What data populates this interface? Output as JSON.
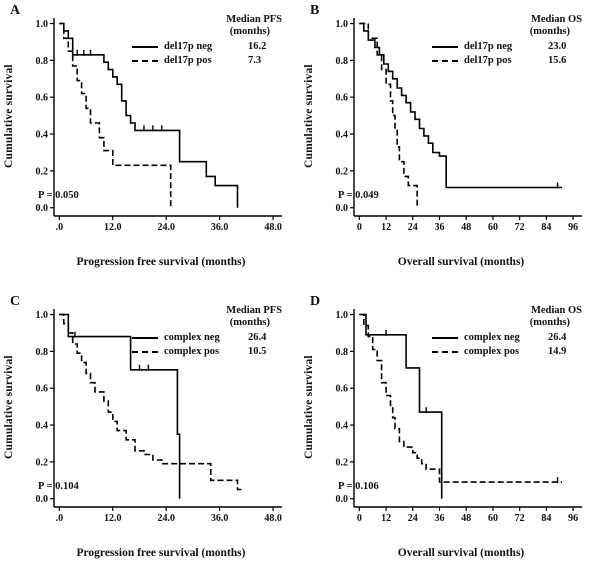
{
  "figure": {
    "background": "#ffffff",
    "line_color": "#000000"
  },
  "chart_data": [
    {
      "type": "line",
      "step": true,
      "panel_label": "A",
      "xlabel": "Progression free survival (months)",
      "ylabel": "Cumulative survival",
      "annotation": "P = 0.050",
      "xlim": [
        -1.2,
        50
      ],
      "ylim": [
        -0.045,
        1.03
      ],
      "x_ticks": {
        "values": [
          0,
          12,
          24,
          36,
          48
        ],
        "labels": [
          ".0",
          "12.0",
          "24.0",
          "36.0",
          "48.0"
        ]
      },
      "y_ticks": {
        "values": [
          0,
          0.2,
          0.4,
          0.6,
          0.8,
          1.0
        ],
        "labels": [
          "0.0",
          "0.2",
          "0.4",
          "0.6",
          "0.8",
          "1.0"
        ]
      },
      "legend": {
        "title": "Median PFS",
        "subtitle": "(months)",
        "position": "top-right"
      },
      "series": [
        {
          "name": "del17p neg",
          "median": "16.2",
          "line": "solid",
          "step_points": [
            [
              0,
              1.0
            ],
            [
              1,
              0.96
            ],
            [
              2,
              0.92
            ],
            [
              3,
              0.83
            ],
            [
              9,
              0.83
            ],
            [
              10,
              0.79
            ],
            [
              11,
              0.75
            ],
            [
              12,
              0.71
            ],
            [
              13,
              0.67
            ],
            [
              14,
              0.58
            ],
            [
              15,
              0.5
            ],
            [
              16,
              0.46
            ],
            [
              17,
              0.42
            ],
            [
              26,
              0.42
            ],
            [
              27,
              0.25
            ],
            [
              32,
              0.25
            ],
            [
              33,
              0.17
            ],
            [
              35,
              0.12
            ],
            [
              40,
              0.12
            ],
            [
              40,
              0
            ]
          ],
          "censors": [
            [
              4,
              0.83
            ],
            [
              5.5,
              0.83
            ],
            [
              7,
              0.83
            ],
            [
              19,
              0.42
            ],
            [
              21,
              0.42
            ],
            [
              23,
              0.42
            ]
          ]
        },
        {
          "name": "del17p pos",
          "median": "7.3",
          "line": "dashed",
          "step_points": [
            [
              0,
              1.0
            ],
            [
              1,
              0.92
            ],
            [
              2,
              0.85
            ],
            [
              3,
              0.77
            ],
            [
              4,
              0.69
            ],
            [
              5,
              0.62
            ],
            [
              6,
              0.54
            ],
            [
              7,
              0.46
            ],
            [
              9,
              0.38
            ],
            [
              10,
              0.31
            ],
            [
              12,
              0.23
            ],
            [
              25,
              0.23
            ],
            [
              25,
              0
            ]
          ],
          "censors": []
        }
      ]
    },
    {
      "type": "line",
      "step": true,
      "panel_label": "B",
      "xlabel": "Overall survival (months)",
      "ylabel": "Cumulative survival",
      "annotation": "P = 0.049",
      "xlim": [
        -2.4,
        100
      ],
      "ylim": [
        -0.045,
        1.03
      ],
      "x_ticks": {
        "values": [
          0,
          12,
          24,
          36,
          48,
          60,
          72,
          84,
          96
        ],
        "labels": [
          "0",
          "12",
          "24",
          "36",
          "48",
          "60",
          "72",
          "84",
          "96"
        ]
      },
      "y_ticks": {
        "values": [
          0,
          0.2,
          0.4,
          0.6,
          0.8,
          1.0
        ],
        "labels": [
          "0.0",
          "0.2",
          "0.4",
          "0.6",
          "0.8",
          "1.0"
        ]
      },
      "legend": {
        "title": "Median OS",
        "subtitle": "(months)",
        "position": "top-right"
      },
      "series": [
        {
          "name": "del17p neg",
          "median": "23.0",
          "line": "solid",
          "step_points": [
            [
              0,
              1.0
            ],
            [
              2,
              0.96
            ],
            [
              4,
              0.91
            ],
            [
              7,
              0.87
            ],
            [
              9,
              0.83
            ],
            [
              11,
              0.78
            ],
            [
              13,
              0.74
            ],
            [
              15,
              0.7
            ],
            [
              17,
              0.65
            ],
            [
              19,
              0.61
            ],
            [
              21,
              0.57
            ],
            [
              23,
              0.52
            ],
            [
              25,
              0.48
            ],
            [
              27,
              0.43
            ],
            [
              29,
              0.39
            ],
            [
              31,
              0.35
            ],
            [
              33,
              0.3
            ],
            [
              36,
              0.28
            ],
            [
              39,
              0.11
            ],
            [
              91,
              0.11
            ]
          ],
          "censors": [
            [
              89,
              0.11
            ]
          ]
        },
        {
          "name": "del17p pos",
          "median": "15.6",
          "line": "dashed",
          "step_points": [
            [
              0,
              1.0
            ],
            [
              4,
              0.92
            ],
            [
              8,
              0.83
            ],
            [
              10,
              0.75
            ],
            [
              12,
              0.67
            ],
            [
              14,
              0.58
            ],
            [
              15,
              0.5
            ],
            [
              16,
              0.42
            ],
            [
              17,
              0.33
            ],
            [
              18,
              0.25
            ],
            [
              20,
              0.17
            ],
            [
              22,
              0.12
            ],
            [
              26,
              0.12
            ],
            [
              26,
              0
            ]
          ],
          "censors": []
        }
      ]
    },
    {
      "type": "line",
      "step": true,
      "panel_label": "C",
      "xlabel": "Progression free survival (months)",
      "ylabel": "Cumulative survival",
      "annotation": "P = 0.104",
      "xlim": [
        -1.2,
        50
      ],
      "ylim": [
        -0.045,
        1.03
      ],
      "x_ticks": {
        "values": [
          0,
          12,
          24,
          36,
          48
        ],
        "labels": [
          ".0",
          "12.0",
          "24.0",
          "36.0",
          "48.0"
        ]
      },
      "y_ticks": {
        "values": [
          0,
          0.2,
          0.4,
          0.6,
          0.8,
          1.0
        ],
        "labels": [
          "0.0",
          "0.2",
          "0.4",
          "0.6",
          "0.8",
          "1.0"
        ]
      },
      "legend": {
        "title": "Median PFS",
        "subtitle": "(months)",
        "position": "top-right"
      },
      "series": [
        {
          "name": "complex neg",
          "median": "26.4",
          "line": "solid",
          "step_points": [
            [
              0,
              1.0
            ],
            [
              2,
              0.88
            ],
            [
              15,
              0.88
            ],
            [
              16,
              0.7
            ],
            [
              26,
              0.7
            ],
            [
              26.5,
              0.35
            ],
            [
              27,
              0.35
            ],
            [
              27,
              0
            ]
          ],
          "censors": [
            [
              3.5,
              0.88
            ],
            [
              18,
              0.7
            ],
            [
              20,
              0.7
            ]
          ]
        },
        {
          "name": "complex pos",
          "median": "10.5",
          "line": "dashed",
          "step_points": [
            [
              0,
              1.0
            ],
            [
              1,
              0.95
            ],
            [
              2,
              0.9
            ],
            [
              3,
              0.84
            ],
            [
              4,
              0.79
            ],
            [
              5,
              0.74
            ],
            [
              6,
              0.68
            ],
            [
              7,
              0.63
            ],
            [
              8,
              0.58
            ],
            [
              10,
              0.53
            ],
            [
              11,
              0.47
            ],
            [
              12,
              0.42
            ],
            [
              13,
              0.37
            ],
            [
              15,
              0.32
            ],
            [
              17,
              0.26
            ],
            [
              19,
              0.24
            ],
            [
              21,
              0.21
            ],
            [
              23,
              0.19
            ],
            [
              33,
              0.19
            ],
            [
              34,
              0.1
            ],
            [
              39,
              0.1
            ],
            [
              40,
              0.05
            ],
            [
              41.5,
              0.05
            ]
          ],
          "censors": []
        }
      ]
    },
    {
      "type": "line",
      "step": true,
      "panel_label": "D",
      "xlabel": "Overall survival (months)",
      "ylabel": "Cumulative survival",
      "annotation": "P = 0.106",
      "xlim": [
        -2.4,
        100
      ],
      "ylim": [
        -0.045,
        1.03
      ],
      "x_ticks": {
        "values": [
          0,
          12,
          24,
          36,
          48,
          60,
          72,
          84,
          96
        ],
        "labels": [
          "0",
          "12",
          "24",
          "36",
          "48",
          "60",
          "72",
          "84",
          "96"
        ]
      },
      "y_ticks": {
        "values": [
          0,
          0.2,
          0.4,
          0.6,
          0.8,
          1.0
        ],
        "labels": [
          "0.0",
          "0.2",
          "0.4",
          "0.6",
          "0.8",
          "1.0"
        ]
      },
      "legend": {
        "title": "Median OS",
        "subtitle": "(months)",
        "position": "top-right"
      },
      "series": [
        {
          "name": "complex neg",
          "median": "26.4",
          "line": "solid",
          "step_points": [
            [
              0,
              1.0
            ],
            [
              3,
              0.89
            ],
            [
              20,
              0.89
            ],
            [
              21,
              0.71
            ],
            [
              26,
              0.71
            ],
            [
              27,
              0.47
            ],
            [
              36,
              0.47
            ],
            [
              37,
              0
            ]
          ],
          "censors": [
            [
              12,
              0.89
            ],
            [
              30,
              0.47
            ]
          ]
        },
        {
          "name": "complex pos",
          "median": "14.9",
          "line": "dashed",
          "step_points": [
            [
              0,
              1.0
            ],
            [
              2,
              0.94
            ],
            [
              4,
              0.88
            ],
            [
              6,
              0.81
            ],
            [
              8,
              0.75
            ],
            [
              10,
              0.63
            ],
            [
              12,
              0.56
            ],
            [
              14,
              0.5
            ],
            [
              15,
              0.44
            ],
            [
              16,
              0.38
            ],
            [
              18,
              0.31
            ],
            [
              20,
              0.28
            ],
            [
              24,
              0.25
            ],
            [
              26,
              0.22
            ],
            [
              28,
              0.19
            ],
            [
              30,
              0.16
            ],
            [
              34,
              0.16
            ],
            [
              36,
              0.09
            ],
            [
              91,
              0.09
            ]
          ],
          "censors": [
            [
              89,
              0.09
            ]
          ]
        }
      ]
    }
  ]
}
